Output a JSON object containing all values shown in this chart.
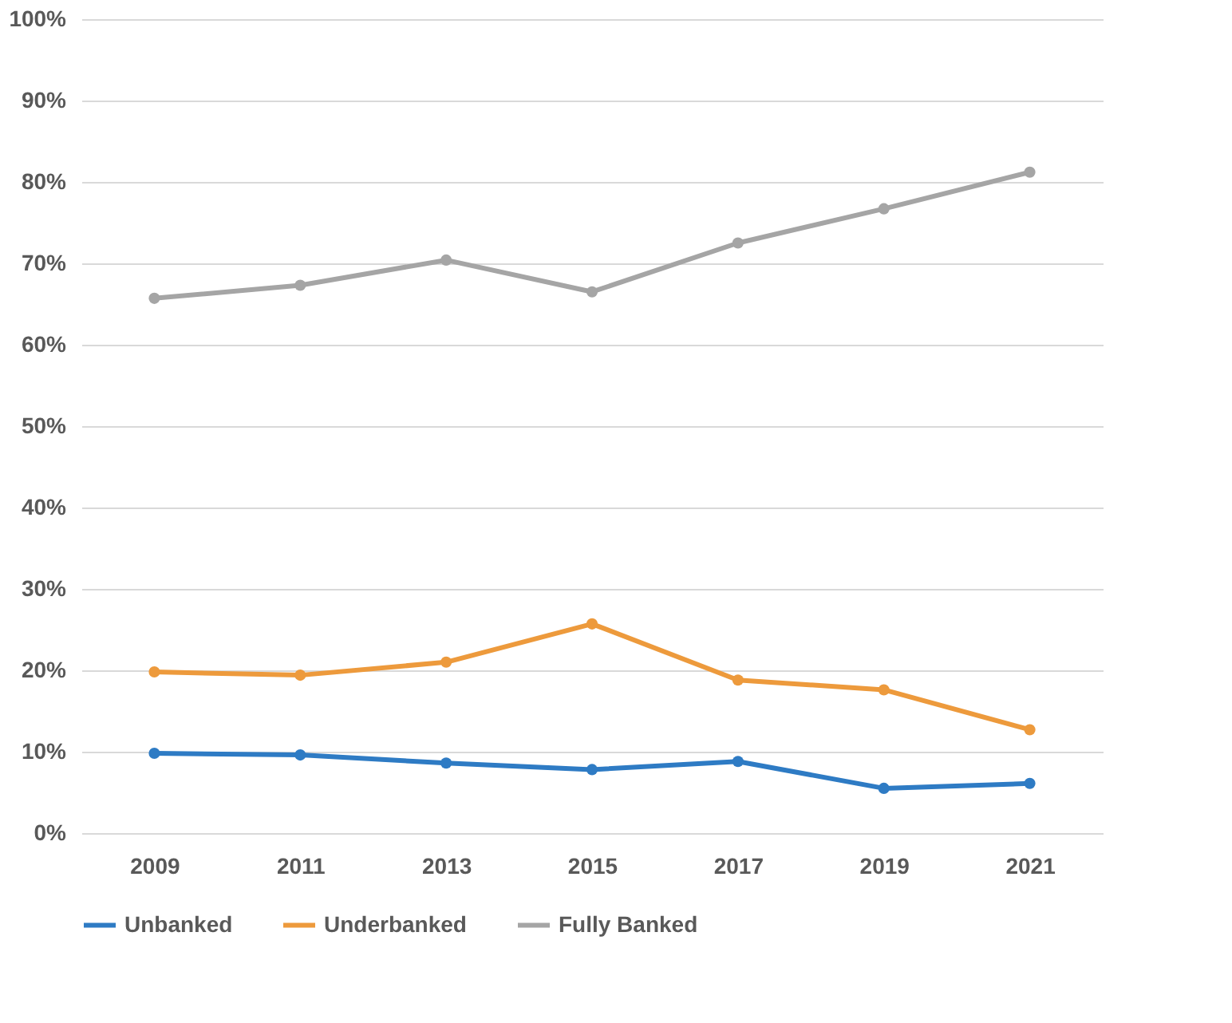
{
  "chart_data": {
    "type": "line",
    "categories": [
      "2009",
      "2011",
      "2013",
      "2015",
      "2017",
      "2019",
      "2021"
    ],
    "series": [
      {
        "name": "Unbanked",
        "color": "#2e7bc4",
        "values": [
          9.8,
          9.6,
          8.6,
          7.8,
          8.8,
          5.5,
          6.1
        ]
      },
      {
        "name": "Underbanked",
        "color": "#ed9a3c",
        "values": [
          19.8,
          19.4,
          21.0,
          25.7,
          18.8,
          17.6,
          12.7
        ]
      },
      {
        "name": "Fully Banked",
        "color": "#a5a5a5",
        "values": [
          65.7,
          67.3,
          70.4,
          66.5,
          72.5,
          76.7,
          81.2
        ]
      }
    ],
    "ylim": [
      0,
      100
    ],
    "yticks": [
      {
        "value": 0,
        "label": "0%"
      },
      {
        "value": 10,
        "label": "10%"
      },
      {
        "value": 20,
        "label": "20%"
      },
      {
        "value": 30,
        "label": "30%"
      },
      {
        "value": 40,
        "label": "40%"
      },
      {
        "value": 50,
        "label": "50%"
      },
      {
        "value": 60,
        "label": "60%"
      },
      {
        "value": 70,
        "label": "70%"
      },
      {
        "value": 80,
        "label": "80%"
      },
      {
        "value": 90,
        "label": "90%"
      },
      {
        "value": 100,
        "label": "100%"
      }
    ],
    "grid": "y",
    "legend": "bottom",
    "marker": "circle",
    "line_style": "solid"
  }
}
